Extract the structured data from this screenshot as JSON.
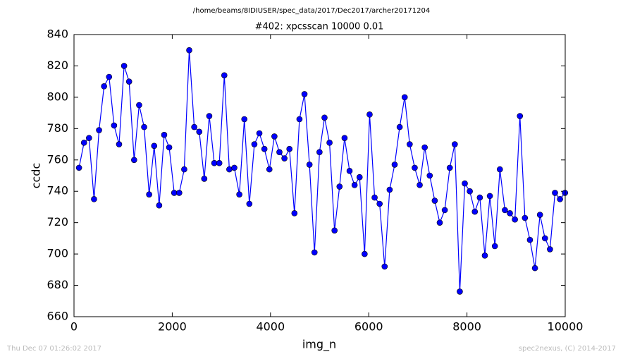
{
  "chart_data": {
    "type": "line",
    "header": "/home/beams/8IDIUSER/spec_data/2017/Dec2017/archer20171204",
    "title": "#402: xpcsscan 10000 0.01",
    "x_label": "img_n",
    "y_label": "ccdc",
    "footer_left": "Thu Dec 07 01:26:02 2017",
    "footer_right": "spec2nexus, (C) 2014-2017",
    "color": "#0000ff",
    "marker": "circle",
    "x": [
      102,
      204,
      306,
      408,
      510,
      612,
      714,
      816,
      918,
      1020,
      1122,
      1224,
      1326,
      1428,
      1530,
      1632,
      1734,
      1836,
      1938,
      2040,
      2142,
      2244,
      2346,
      2448,
      2550,
      2652,
      2754,
      2856,
      2958,
      3060,
      3162,
      3264,
      3366,
      3468,
      3570,
      3672,
      3774,
      3876,
      3978,
      4080,
      4182,
      4284,
      4386,
      4488,
      4590,
      4692,
      4794,
      4896,
      4998,
      5100,
      5202,
      5304,
      5406,
      5508,
      5610,
      5712,
      5814,
      5916,
      6018,
      6120,
      6222,
      6324,
      6426,
      6528,
      6630,
      6732,
      6834,
      6936,
      7038,
      7140,
      7242,
      7344,
      7446,
      7548,
      7650,
      7752,
      7854,
      7956,
      8058,
      8160,
      8262,
      8364,
      8466,
      8568,
      8670,
      8772,
      8874,
      8976,
      9078,
      9180,
      9282,
      9384,
      9486,
      9588,
      9690,
      9792,
      9894,
      9996
    ],
    "values": [
      755,
      771,
      774,
      735,
      779,
      807,
      813,
      782,
      770,
      820,
      810,
      760,
      795,
      781,
      738,
      769,
      731,
      776,
      768,
      739,
      739,
      754,
      830,
      781,
      778,
      748,
      788,
      758,
      758,
      814,
      754,
      755,
      738,
      786,
      732,
      770,
      777,
      767,
      754,
      775,
      765,
      761,
      767,
      726,
      786,
      802,
      757,
      701,
      765,
      787,
      771,
      715,
      743,
      774,
      753,
      744,
      749,
      700,
      789,
      736,
      732,
      692,
      741,
      757,
      781,
      800,
      770,
      755,
      744,
      768,
      750,
      734,
      720,
      728,
      755,
      770,
      676,
      745,
      740,
      727,
      736,
      699,
      737,
      705,
      754,
      728,
      726,
      722,
      788,
      723,
      709,
      691,
      725,
      710,
      703,
      739,
      735,
      739
    ],
    "xlim": [
      0,
      10000
    ],
    "ylim": [
      660,
      840
    ],
    "xticks": [
      0,
      2000,
      4000,
      6000,
      8000,
      10000
    ],
    "yticks": [
      660,
      680,
      700,
      720,
      740,
      760,
      780,
      800,
      820,
      840
    ]
  }
}
